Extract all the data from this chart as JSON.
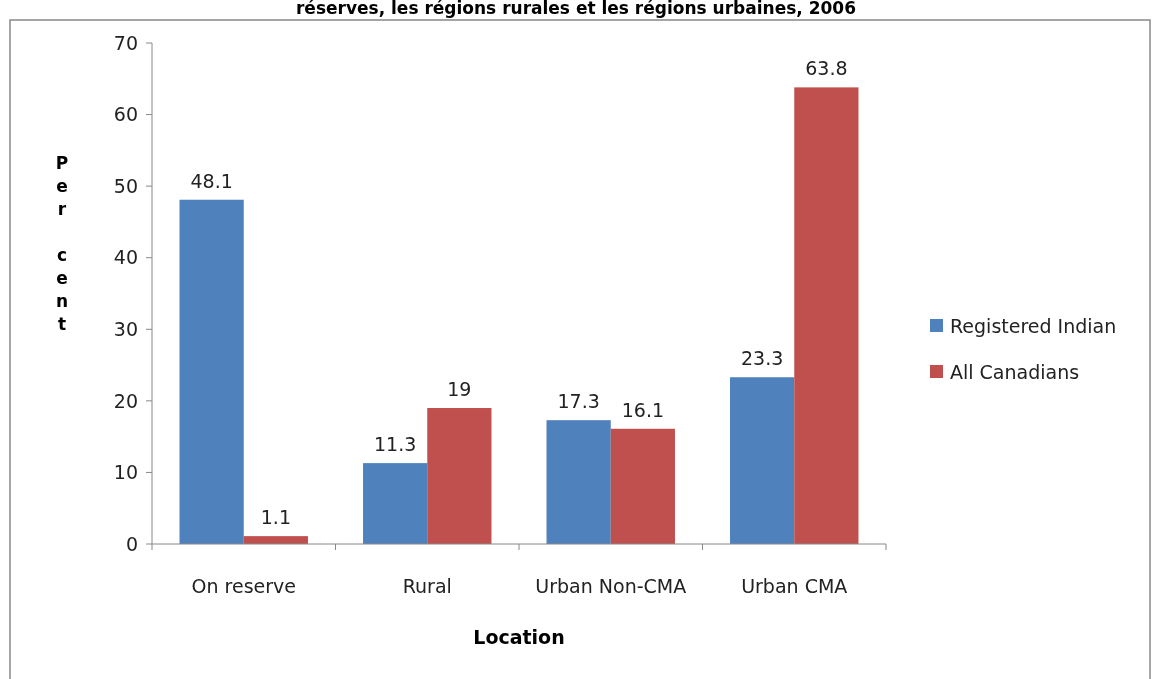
{
  "chart_data": {
    "type": "bar",
    "title": "réserves, les régions rurales et les régions urbaines, 2006",
    "xlabel": "Location",
    "ylabel": "Per cent",
    "categories": [
      "On reserve",
      "Rural",
      "Urban Non-CMA",
      "Urban CMA"
    ],
    "series": [
      {
        "name": "Registered Indian",
        "color": "#4f81bd",
        "values": [
          48.1,
          11.3,
          17.3,
          23.3
        ]
      },
      {
        "name": "All Canadians",
        "color": "#c0504d",
        "values": [
          1.1,
          19,
          16.1,
          63.8
        ]
      }
    ],
    "ylim": [
      0,
      70
    ],
    "yticks": [
      0,
      10,
      20,
      30,
      40,
      50,
      60,
      70
    ],
    "data_labels": true,
    "legend": "right",
    "grid": false
  }
}
